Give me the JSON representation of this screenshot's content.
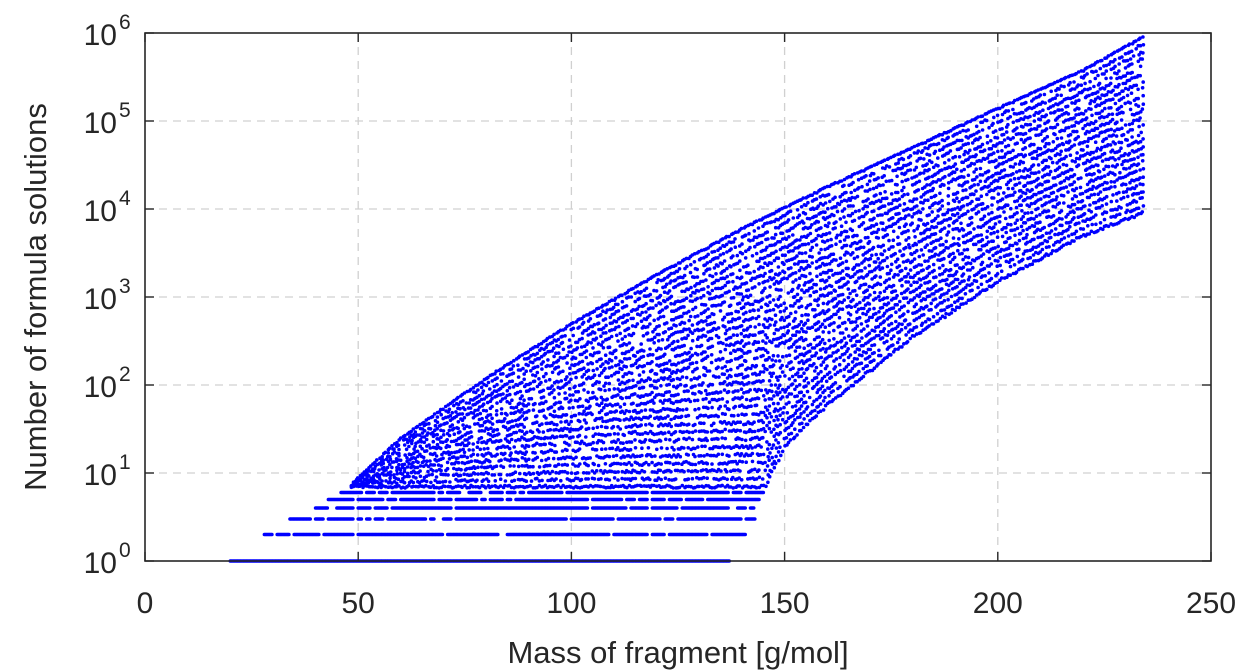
{
  "chart_data": {
    "type": "scatter",
    "title": "",
    "xlabel": "Mass of fragment [g/mol]",
    "ylabel": "Number of formula solutions",
    "xlim": [
      0,
      250
    ],
    "ylim": [
      1,
      1000000
    ],
    "yscale": "log",
    "grid": true,
    "legend": "none",
    "marker_color": "#0000ff",
    "x_ticks": [
      {
        "value": 0,
        "label": "0"
      },
      {
        "value": 50,
        "label": "50"
      },
      {
        "value": 100,
        "label": "100"
      },
      {
        "value": 150,
        "label": "150"
      },
      {
        "value": 200,
        "label": "200"
      },
      {
        "value": 250,
        "label": "250"
      }
    ],
    "y_ticks": [
      {
        "value": 1,
        "base": "10",
        "exp": "0"
      },
      {
        "value": 10,
        "base": "10",
        "exp": "1"
      },
      {
        "value": 100,
        "base": "10",
        "exp": "2"
      },
      {
        "value": 1000,
        "base": "10",
        "exp": "3"
      },
      {
        "value": 10000,
        "base": "10",
        "exp": "4"
      },
      {
        "value": 100000,
        "base": "10",
        "exp": "5"
      },
      {
        "value": 1000000,
        "base": "10",
        "exp": "6"
      }
    ],
    "series": [
      {
        "x_range": [
          20,
          234
        ],
        "upper_envelope": [
          [
            47,
            6
          ],
          [
            50,
            9
          ],
          [
            60,
            25
          ],
          [
            80,
            120
          ],
          [
            100,
            500
          ],
          [
            120,
            1800
          ],
          [
            140,
            6000
          ],
          [
            160,
            18000
          ],
          [
            180,
            50000
          ],
          [
            200,
            140000
          ],
          [
            220,
            380000
          ],
          [
            234,
            900000
          ]
        ],
        "lower_envelope": [
          [
            20,
            1
          ],
          [
            137,
            1
          ],
          [
            150,
            20
          ],
          [
            160,
            60
          ],
          [
            180,
            350
          ],
          [
            200,
            1500
          ],
          [
            220,
            5000
          ],
          [
            234,
            9000
          ]
        ],
        "discrete_levels": [
          {
            "y": 1,
            "x_range": [
              20,
              137
            ]
          },
          {
            "y": 2,
            "x_range": [
              28,
              142
            ]
          },
          {
            "y": 3,
            "x_range": [
              33,
              143
            ]
          },
          {
            "y": 4,
            "x_range": [
              40,
              144
            ]
          },
          {
            "y": 5,
            "x_range": [
              43,
              144
            ]
          },
          {
            "y": 6,
            "x_range": [
              46,
              145
            ]
          }
        ]
      }
    ]
  }
}
